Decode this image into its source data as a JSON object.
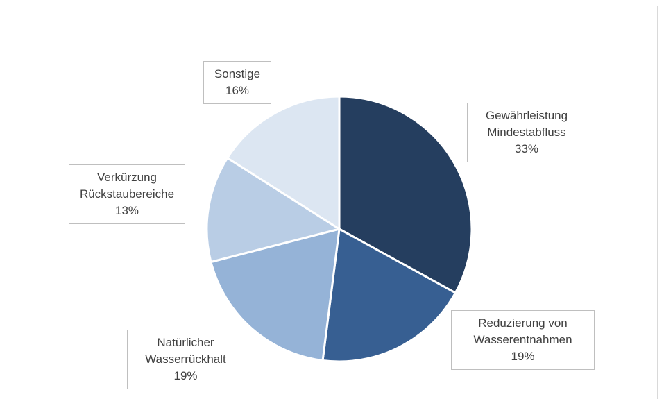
{
  "chart_data": {
    "type": "pie",
    "categories": [
      "Gewährleistung Mindestabfluss",
      "Reduzierung von Wasserentnahmen",
      "Natürlicher Wasserrückhalt",
      "Verkürzung Rückstaubereiche",
      "Sonstige"
    ],
    "values": [
      33,
      19,
      19,
      13,
      16
    ],
    "value_labels": [
      "33%",
      "19%",
      "19%",
      "13%",
      "16%"
    ],
    "colors": [
      "#253e5f",
      "#375f92",
      "#95b3d7",
      "#b9cde5",
      "#dce6f2"
    ]
  }
}
